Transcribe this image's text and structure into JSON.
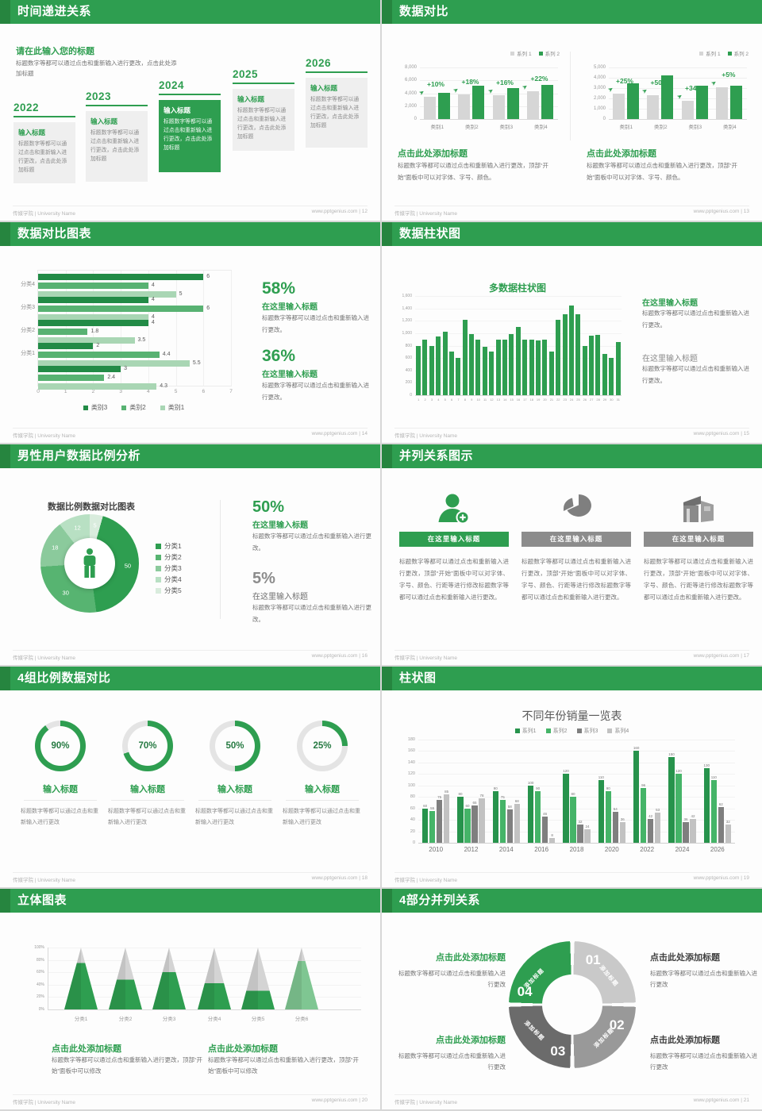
{
  "palette": {
    "accent": "#2e9e50",
    "accent_dark": "#26853f",
    "green_mid": "#57b471",
    "green_light": "#8bca9c",
    "green_pale": "#b8e0c3",
    "green_faint": "#d9ecdd",
    "bar_gray": "#d6d6d6",
    "text_gray": "#737373"
  },
  "footer": {
    "left": "传媒学院 | University Name",
    "site": "www.pptgenius.com",
    "sep": " | "
  },
  "chart_data": [
    {
      "type": "bar",
      "categories": [
        "类别1",
        "类别2",
        "类别3",
        "类别4"
      ],
      "series": [
        {
          "name": "系列 1",
          "values": [
            3500,
            3800,
            3700,
            4300
          ]
        },
        {
          "name": "系列 2",
          "values": [
            4100,
            5200,
            4800,
            5300
          ]
        }
      ],
      "annotations": [
        "+10%",
        "+18%",
        "+16%",
        "+22%"
      ],
      "ylim": [
        0,
        8000
      ],
      "yticks": [
        "8,000",
        "6,000",
        "4,000",
        "2,000",
        "0"
      ],
      "legend_position": "top-right"
    },
    {
      "type": "bar",
      "categories": [
        "类别1",
        "类别2",
        "类别3",
        "类别4"
      ],
      "series": [
        {
          "name": "系列 1",
          "values": [
            2500,
            2300,
            1800,
            3100
          ]
        },
        {
          "name": "系列 2",
          "values": [
            3500,
            4200,
            3250,
            3250
          ]
        }
      ],
      "annotations": [
        "+25%",
        "+50%",
        "+34%",
        "+5%"
      ],
      "ylim": [
        0,
        5000
      ],
      "yticks": [
        "5,000",
        "4,000",
        "3,000",
        "2,000",
        "1,000",
        "0"
      ],
      "legend_position": "top-right"
    },
    {
      "type": "bar",
      "orientation": "horizontal",
      "categories": [
        "分类4",
        "分类3",
        "分类2",
        "分类1",
        ""
      ],
      "series": [
        {
          "name": "类别3",
          "values": [
            6,
            4,
            4,
            2,
            3
          ]
        },
        {
          "name": "类别2",
          "values": [
            4,
            6,
            1.8,
            4.4,
            2.4
          ]
        },
        {
          "name": "类别1",
          "values": [
            5,
            4,
            3.5,
            5.5,
            4.3
          ]
        }
      ],
      "xlim": [
        0,
        7
      ],
      "xticks": [
        "0",
        "1",
        "2",
        "3",
        "4",
        "5",
        "6",
        "7"
      ],
      "colors": [
        "#228b46",
        "#58b272",
        "#a9d6b4"
      ],
      "legend_position": "bottom"
    },
    {
      "type": "bar",
      "title": "多数据柱状图",
      "categories": [
        "1",
        "2",
        "3",
        "4",
        "5",
        "6",
        "7",
        "8",
        "9",
        "10",
        "11",
        "12",
        "13",
        "14",
        "15",
        "16",
        "17",
        "18",
        "19",
        "20",
        "21",
        "22",
        "23",
        "24",
        "25",
        "26",
        "27",
        "28",
        "29",
        "30",
        "31"
      ],
      "values": [
        800,
        900,
        800,
        950,
        1020,
        700,
        600,
        1210,
        980,
        900,
        780,
        700,
        890,
        900,
        990,
        1100,
        900,
        900,
        880,
        900,
        700,
        1210,
        1300,
        1450,
        1300,
        800,
        960,
        970,
        660,
        600,
        860
      ],
      "ylim": [
        0,
        1600
      ],
      "yticks": [
        "1,600",
        "1,400",
        "1,200",
        "1,000",
        "800",
        "600",
        "400",
        "200",
        "0"
      ]
    },
    {
      "type": "pie",
      "title": "数据比例数据对比图表",
      "slices": [
        {
          "label": "5",
          "value": 5,
          "color": "#d9ecdd"
        },
        {
          "label": "50",
          "value": 50,
          "color": "#2e9e50"
        },
        {
          "label": "30",
          "value": 30,
          "color": "#57b471"
        },
        {
          "label": "18",
          "value": 18,
          "color": "#8bca9c"
        },
        {
          "label": "12",
          "value": 12,
          "color": "#b8e0c3"
        }
      ],
      "legend": [
        "分类1",
        "分类2",
        "分类3",
        "分类4",
        "分类5"
      ],
      "legend_colors": [
        "#2e9e50",
        "#57b471",
        "#8bca9c",
        "#b8e0c3",
        "#d9ecdd"
      ]
    },
    {
      "type": "pie",
      "variant": "progress-rings",
      "values": [
        90,
        70,
        50,
        25
      ],
      "labels": [
        "90%",
        "70%",
        "50%",
        "25%"
      ]
    },
    {
      "type": "bar",
      "title": "不同年份销量一览表",
      "categories": [
        "2010",
        "2012",
        "2014",
        "2016",
        "2018",
        "2020",
        "2022",
        "2024",
        "2026"
      ],
      "series": [
        {
          "name": "系列1",
          "values": [
            60,
            80,
            90,
            100,
            120,
            110,
            160,
            150,
            130
          ]
        },
        {
          "name": "系列2",
          "values": [
            55,
            60,
            75,
            90,
            80,
            90,
            96,
            120,
            110
          ]
        },
        {
          "name": "系列3",
          "values": [
            75,
            65,
            58,
            46,
            32,
            54,
            42,
            36,
            62
          ]
        },
        {
          "name": "系列4",
          "values": [
            85,
            78,
            68,
            8,
            24,
            36,
            53,
            42,
            32
          ]
        }
      ],
      "ylim": [
        0,
        180
      ],
      "yticks": [
        "180",
        "160",
        "140",
        "120",
        "100",
        "80",
        "60",
        "40",
        "20",
        "0"
      ],
      "colors": [
        "#27934c",
        "#45b468",
        "#7f7f7f",
        "#c2c2c2"
      ],
      "legend_position": "top"
    },
    {
      "type": "bar",
      "variant": "pyramid",
      "categories": [
        "分类1",
        "分类2",
        "分类3",
        "分类4",
        "分类5",
        "分类6"
      ],
      "values_percent": [
        75,
        48,
        60,
        42,
        30,
        78
      ],
      "yticks": [
        "100%",
        "80%",
        "60%",
        "40%",
        "20%",
        "0%"
      ],
      "colors": [
        "#2e9e50",
        "#2e9e50",
        "#2e9e50",
        "#2e9e50",
        "#2e9e50",
        "#7fc692"
      ]
    }
  ],
  "slides": [
    {
      "title": "时间递进关系",
      "page": "12",
      "intro_heading": "请在此输入您的标题",
      "intro_body": "标题数字等都可以通过点击和重新输入进行更改，点击此处添加标题",
      "steps": [
        {
          "year": "2022",
          "heading": "输入标题",
          "body": "标题数字等都可以通过点击和重新输入进行更改，点击此处添加标题",
          "highlight": false
        },
        {
          "year": "2023",
          "heading": "输入标题",
          "body": "标题数字等都可以通过点击和重新输入进行更改，点击此处添加标题",
          "highlight": false
        },
        {
          "year": "2024",
          "heading": "输入标题",
          "body": "标题数字等都可以通过点击和重新输入进行更改，点击此处添加标题",
          "highlight": true
        },
        {
          "year": "2025",
          "heading": "输入标题",
          "body": "标题数字等都可以通过点击和重新输入进行更改，点击此处添加标题",
          "highlight": false
        },
        {
          "year": "2026",
          "heading": "输入标题",
          "body": "标题数字等都可以通过点击和重新输入进行更改，点击此处添加标题",
          "highlight": false
        }
      ]
    },
    {
      "title": "数据对比",
      "page": "13",
      "charts": [
        {
          "chart": 0,
          "heading": "点击此处添加标题",
          "body": "标题数字等都可以通过点击和重新输入进行更改，顶部“开始”面板中可以对字体、字号、颜色。"
        },
        {
          "chart": 1,
          "heading": "点击此处添加标题",
          "body": "标题数字等都可以通过点击和重新输入进行更改，顶部“开始”面板中可以对字体、字号、颜色。"
        }
      ]
    },
    {
      "title": "数据对比图表",
      "page": "14",
      "chart": 2,
      "stats": [
        {
          "value": "58%",
          "heading": "在这里输入标题",
          "body": "标题数字等都可以通过点击和重新输入进行更改。",
          "green": true
        },
        {
          "value": "36%",
          "heading": "在这里输入标题",
          "body": "标题数字等都可以通过点击和重新输入进行更改。",
          "green": true
        }
      ]
    },
    {
      "title": "数据柱状图",
      "page": "15",
      "chart": 3,
      "blocks": [
        {
          "heading": "在这里输入标题",
          "body": "标题数字等都可以通过点击和重新输入进行更改。",
          "green": true
        },
        {
          "heading": "在这里输入标题",
          "body": "标题数字等都可以通过点击和重新输入进行更改。",
          "green": false
        }
      ]
    },
    {
      "title": "男性用户数据比例分析",
      "page": "16",
      "chart": 4,
      "stats": [
        {
          "value": "50%",
          "heading": "在这里输入标题",
          "body": "标题数字等都可以通过点击和重新输入进行更改。",
          "green": true
        },
        {
          "value": "5%",
          "heading": "在这里输入标题",
          "body": "标题数字等都可以通过点击和重新输入进行更改。",
          "green": false
        }
      ]
    },
    {
      "title": "并列关系图示",
      "page": "17",
      "items": [
        {
          "icon": "person-add-icon",
          "heading": "在这里输入标题",
          "green": true,
          "body": "标题数字等都可以通过点击和重新输入进行更改，顶部“开始”面板中可以对字体、字号、颜色、行距等进行修改标题数字等都可以通过点击和重新输入进行更改。"
        },
        {
          "icon": "pie-3d-icon",
          "heading": "在这里输入标题",
          "green": false,
          "body": "标题数字等都可以通过点击和重新输入进行更改，顶部“开始”面板中可以对字体、字号、颜色、行距等进行修改标题数字等都可以通过点击和重新输入进行更改。"
        },
        {
          "icon": "building-icon",
          "heading": "在这里输入标题",
          "green": false,
          "body": "标题数字等都可以通过点击和重新输入进行更改，顶部“开始”面板中可以对字体、字号、颜色、行距等进行修改标题数字等都可以通过点击和重新输入进行更改。"
        }
      ]
    },
    {
      "title": "4组比例数据对比",
      "page": "18",
      "chart": 5,
      "items": [
        {
          "label": "90%",
          "percent": 90,
          "heading": "输入标题",
          "body": "标题数字等都可以通过点击和重新输入进行更改"
        },
        {
          "label": "70%",
          "percent": 70,
          "heading": "输入标题",
          "body": "标题数字等都可以通过点击和重新输入进行更改"
        },
        {
          "label": "50%",
          "percent": 50,
          "heading": "输入标题",
          "body": "标题数字等都可以通过点击和重新输入进行更改"
        },
        {
          "label": "25%",
          "percent": 25,
          "heading": "输入标题",
          "body": "标题数字等都可以通过点击和重新输入进行更改"
        }
      ]
    },
    {
      "title": "柱状图",
      "page": "19",
      "chart": 6
    },
    {
      "title": "立体图表",
      "page": "20",
      "chart": 7,
      "blocks": [
        {
          "heading": "点击此处添加标题",
          "body": "标题数字等都可以通过点击和重新输入进行更改，顶部“开始”面板中可以修改"
        },
        {
          "heading": "点击此处添加标题",
          "body": "标题数字等都可以通过点击和重新输入进行更改，顶部“开始”面板中可以修改"
        }
      ]
    },
    {
      "title": "4部分并列关系",
      "page": "21",
      "segments": [
        {
          "num": "01",
          "label": "添加标题",
          "color": "#c9c9c9"
        },
        {
          "num": "02",
          "label": "添加标题",
          "color": "#999999"
        },
        {
          "num": "03",
          "label": "添加标题",
          "color": "#6b6b6b"
        },
        {
          "num": "04",
          "label": "添加标题",
          "color": "#2e9e50"
        }
      ],
      "blocks": [
        {
          "pos": "tl",
          "heading": "点击此处添加标题",
          "body": "标题数字等都可以通过点击和重新输入进行更改",
          "green": true
        },
        {
          "pos": "tr",
          "heading": "点击此处添加标题",
          "body": "标题数字等都可以通过点击和重新输入进行更改",
          "green": false
        },
        {
          "pos": "bl",
          "heading": "点击此处添加标题",
          "body": "标题数字等都可以通过点击和重新输入进行更改",
          "green": true
        },
        {
          "pos": "br",
          "heading": "点击此处添加标题",
          "body": "标题数字等都可以通过点击和重新输入进行更改",
          "green": false
        }
      ]
    }
  ]
}
